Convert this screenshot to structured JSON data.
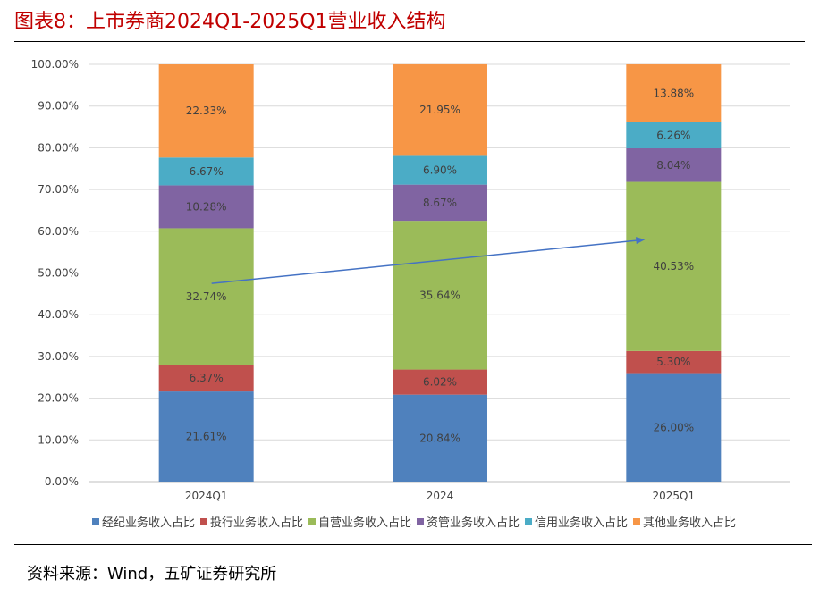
{
  "title": "图表8：上市券商2024Q1-2025Q1营业收入结构",
  "source": "资料来源：Wind，五矿证券研究所",
  "chart_data": {
    "type": "bar",
    "stacked": true,
    "categories": [
      "2024Q1",
      "2024",
      "2025Q1"
    ],
    "ylim": [
      0,
      100
    ],
    "yticks": [
      "0.00%",
      "10.00%",
      "20.00%",
      "30.00%",
      "40.00%",
      "50.00%",
      "60.00%",
      "70.00%",
      "80.00%",
      "90.00%",
      "100.00%"
    ],
    "grid": true,
    "legend_position": "bottom",
    "series": [
      {
        "name": "经纪业务收入占比",
        "color": "#4f81bd",
        "values": [
          21.61,
          20.84,
          26.0
        ],
        "labels": [
          "21.61%",
          "20.84%",
          "26.00%"
        ]
      },
      {
        "name": "投行业务收入占比",
        "color": "#c0504d",
        "values": [
          6.37,
          6.02,
          5.3
        ],
        "labels": [
          "6.37%",
          "6.02%",
          "5.30%"
        ]
      },
      {
        "name": "自营业务收入占比",
        "color": "#9bbb59",
        "values": [
          32.74,
          35.64,
          40.53
        ],
        "labels": [
          "32.74%",
          "35.64%",
          "40.53%"
        ]
      },
      {
        "name": "资管业务收入占比",
        "color": "#8064a2",
        "values": [
          10.28,
          8.67,
          8.04
        ],
        "labels": [
          "10.28%",
          "8.67%",
          "8.04%"
        ]
      },
      {
        "name": "信用业务收入占比",
        "color": "#4bacc6",
        "values": [
          6.67,
          6.9,
          6.26
        ],
        "labels": [
          "6.67%",
          "6.90%",
          "6.26%"
        ]
      },
      {
        "name": "其他业务收入占比",
        "color": "#f79646",
        "values": [
          22.33,
          21.95,
          13.88
        ],
        "labels": [
          "22.33%",
          "21.95%",
          "13.88%"
        ]
      }
    ],
    "annotation": {
      "type": "arrow",
      "from_category": "2024Q1",
      "to_category": "2025Q1",
      "color": "#4472c4"
    }
  }
}
